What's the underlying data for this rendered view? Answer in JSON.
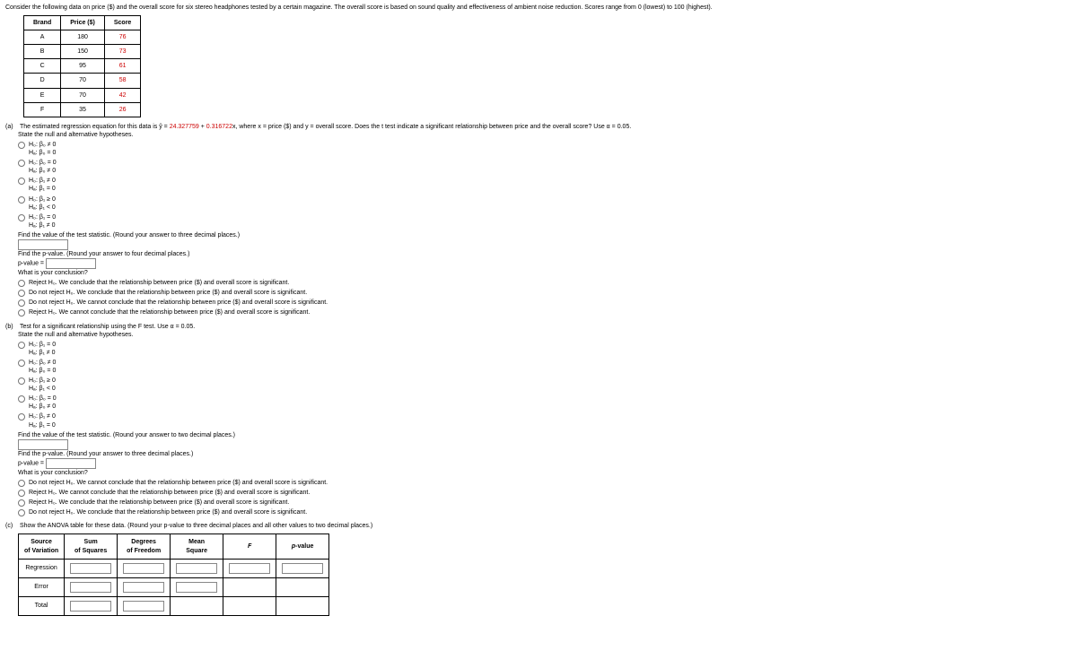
{
  "intro": "Consider the following data on price ($) and the overall score for six stereo headphones tested by a certain magazine. The overall score is based on sound quality and effectiveness of ambient noise reduction. Scores range from 0 (lowest) to 100 (highest).",
  "data_table": {
    "headers": [
      "Brand",
      "Price ($)",
      "Score"
    ],
    "rows": [
      [
        "A",
        "180",
        "76"
      ],
      [
        "B",
        "150",
        "73"
      ],
      [
        "C",
        "95",
        "61"
      ],
      [
        "D",
        "70",
        "58"
      ],
      [
        "E",
        "70",
        "42"
      ],
      [
        "F",
        "35",
        "26"
      ]
    ],
    "header_bg": "#ffffff",
    "score_color": "#cc0000"
  },
  "part_a": {
    "label": "(a)",
    "prompt_pre": "The estimated regression equation for this data is ŷ = ",
    "eq_const": "24.327759",
    "eq_plus": " + ",
    "eq_slope": "0.316722",
    "eq_post": "x, where x = price ($) and y = overall score. Does the t test indicate a significant relationship between price and the overall score? Use α = 0.05.",
    "state": "State the null and alternative hypotheses.",
    "hyps": [
      {
        "h0": "H₀: β₀ ≠ 0",
        "ha": "Hₐ: β₀ = 0"
      },
      {
        "h0": "H₀: β₀ = 0",
        "ha": "Hₐ: β₀ ≠ 0"
      },
      {
        "h0": "H₀: β₁ ≠ 0",
        "ha": "Hₐ: β₁ = 0"
      },
      {
        "h0": "H₀: β₁ ≥ 0",
        "ha": "Hₐ: β₁ < 0"
      },
      {
        "h0": "H₀: β₁ = 0",
        "ha": "Hₐ: β₁ ≠ 0"
      }
    ],
    "find_ts": "Find the value of the test statistic. (Round your answer to three decimal places.)",
    "find_p": "Find the p-value. (Round your answer to four decimal places.)",
    "p_label": "p-value =",
    "conclusion_q": "What is your conclusion?",
    "conclusions": [
      "Reject H₀. We conclude that the relationship between price ($) and overall score is significant.",
      "Do not reject H₀. We conclude that the relationship between price ($) and overall score is significant.",
      "Do not reject H₀. We cannot conclude that the relationship between price ($) and overall score is significant.",
      "Reject H₀. We cannot conclude that the relationship between price ($) and overall score is significant."
    ]
  },
  "part_b": {
    "label": "(b)",
    "prompt": "Test for a significant relationship using the F test. Use α = 0.05.",
    "state": "State the null and alternative hypotheses.",
    "hyps": [
      {
        "h0": "H₀: β₁ = 0",
        "ha": "Hₐ: β₁ ≠ 0"
      },
      {
        "h0": "H₀: β₀ ≠ 0",
        "ha": "Hₐ: β₀ = 0"
      },
      {
        "h0": "H₀: β₁ ≥ 0",
        "ha": "Hₐ: β₁ < 0"
      },
      {
        "h0": "H₀: β₀ = 0",
        "ha": "Hₐ: β₀ ≠ 0"
      },
      {
        "h0": "H₀: β₁ ≠ 0",
        "ha": "Hₐ: β₁ = 0"
      }
    ],
    "find_ts": "Find the value of the test statistic. (Round your answer to two decimal places.)",
    "find_p": "Find the p-value. (Round your answer to three decimal places.)",
    "p_label": "p-value =",
    "conclusion_q": "What is your conclusion?",
    "conclusions": [
      "Do not reject H₀. We cannot conclude that the relationship between price ($) and overall score is significant.",
      "Reject H₀. We cannot conclude that the relationship between price ($) and overall score is significant.",
      "Reject H₀. We conclude that the relationship between price ($) and overall score is significant.",
      "Do not reject H₀. We conclude that the relationship between price ($) and overall score is significant."
    ]
  },
  "part_c": {
    "label": "(c)",
    "prompt": "Show the ANOVA table for these data. (Round your p-value to three decimal places and all other values to two decimal places.)",
    "headers": [
      "Source\nof Variation",
      "Sum\nof Squares",
      "Degrees\nof Freedom",
      "Mean\nSquare",
      "F",
      "p-value"
    ],
    "rows": [
      "Regression",
      "Error",
      "Total"
    ],
    "cells": {
      "Regression": [
        true,
        true,
        true,
        true,
        true
      ],
      "Error": [
        true,
        true,
        true,
        false,
        false
      ],
      "Total": [
        true,
        true,
        false,
        false,
        false
      ]
    }
  }
}
